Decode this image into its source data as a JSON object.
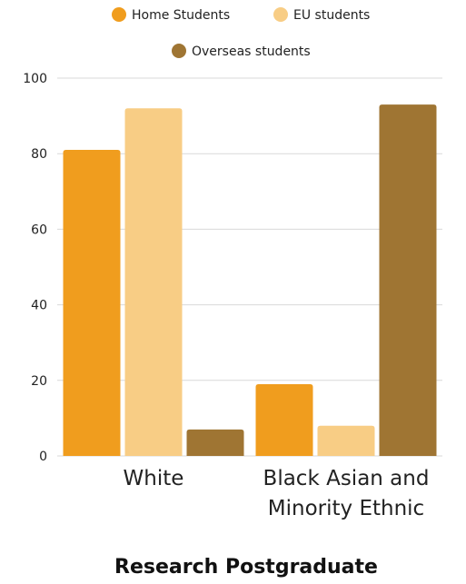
{
  "chart_data": {
    "type": "bar",
    "title": "Research Postgraduate",
    "categories": [
      [
        "White"
      ],
      [
        "Black Asian and",
        "Minority Ethnic"
      ]
    ],
    "series": [
      {
        "name": "Home Students",
        "color": "#f09d1e",
        "values": [
          81,
          19
        ]
      },
      {
        "name": "EU students",
        "color": "#f8cd85",
        "values": [
          92,
          8
        ]
      },
      {
        "name": "Overseas students",
        "color": "#9f7533",
        "values": [
          7,
          93
        ]
      }
    ],
    "ylim": [
      0,
      100
    ],
    "yticks": [
      "0",
      "20",
      "40",
      "60",
      "80",
      "100"
    ],
    "grid": true,
    "legend_position": "top"
  }
}
